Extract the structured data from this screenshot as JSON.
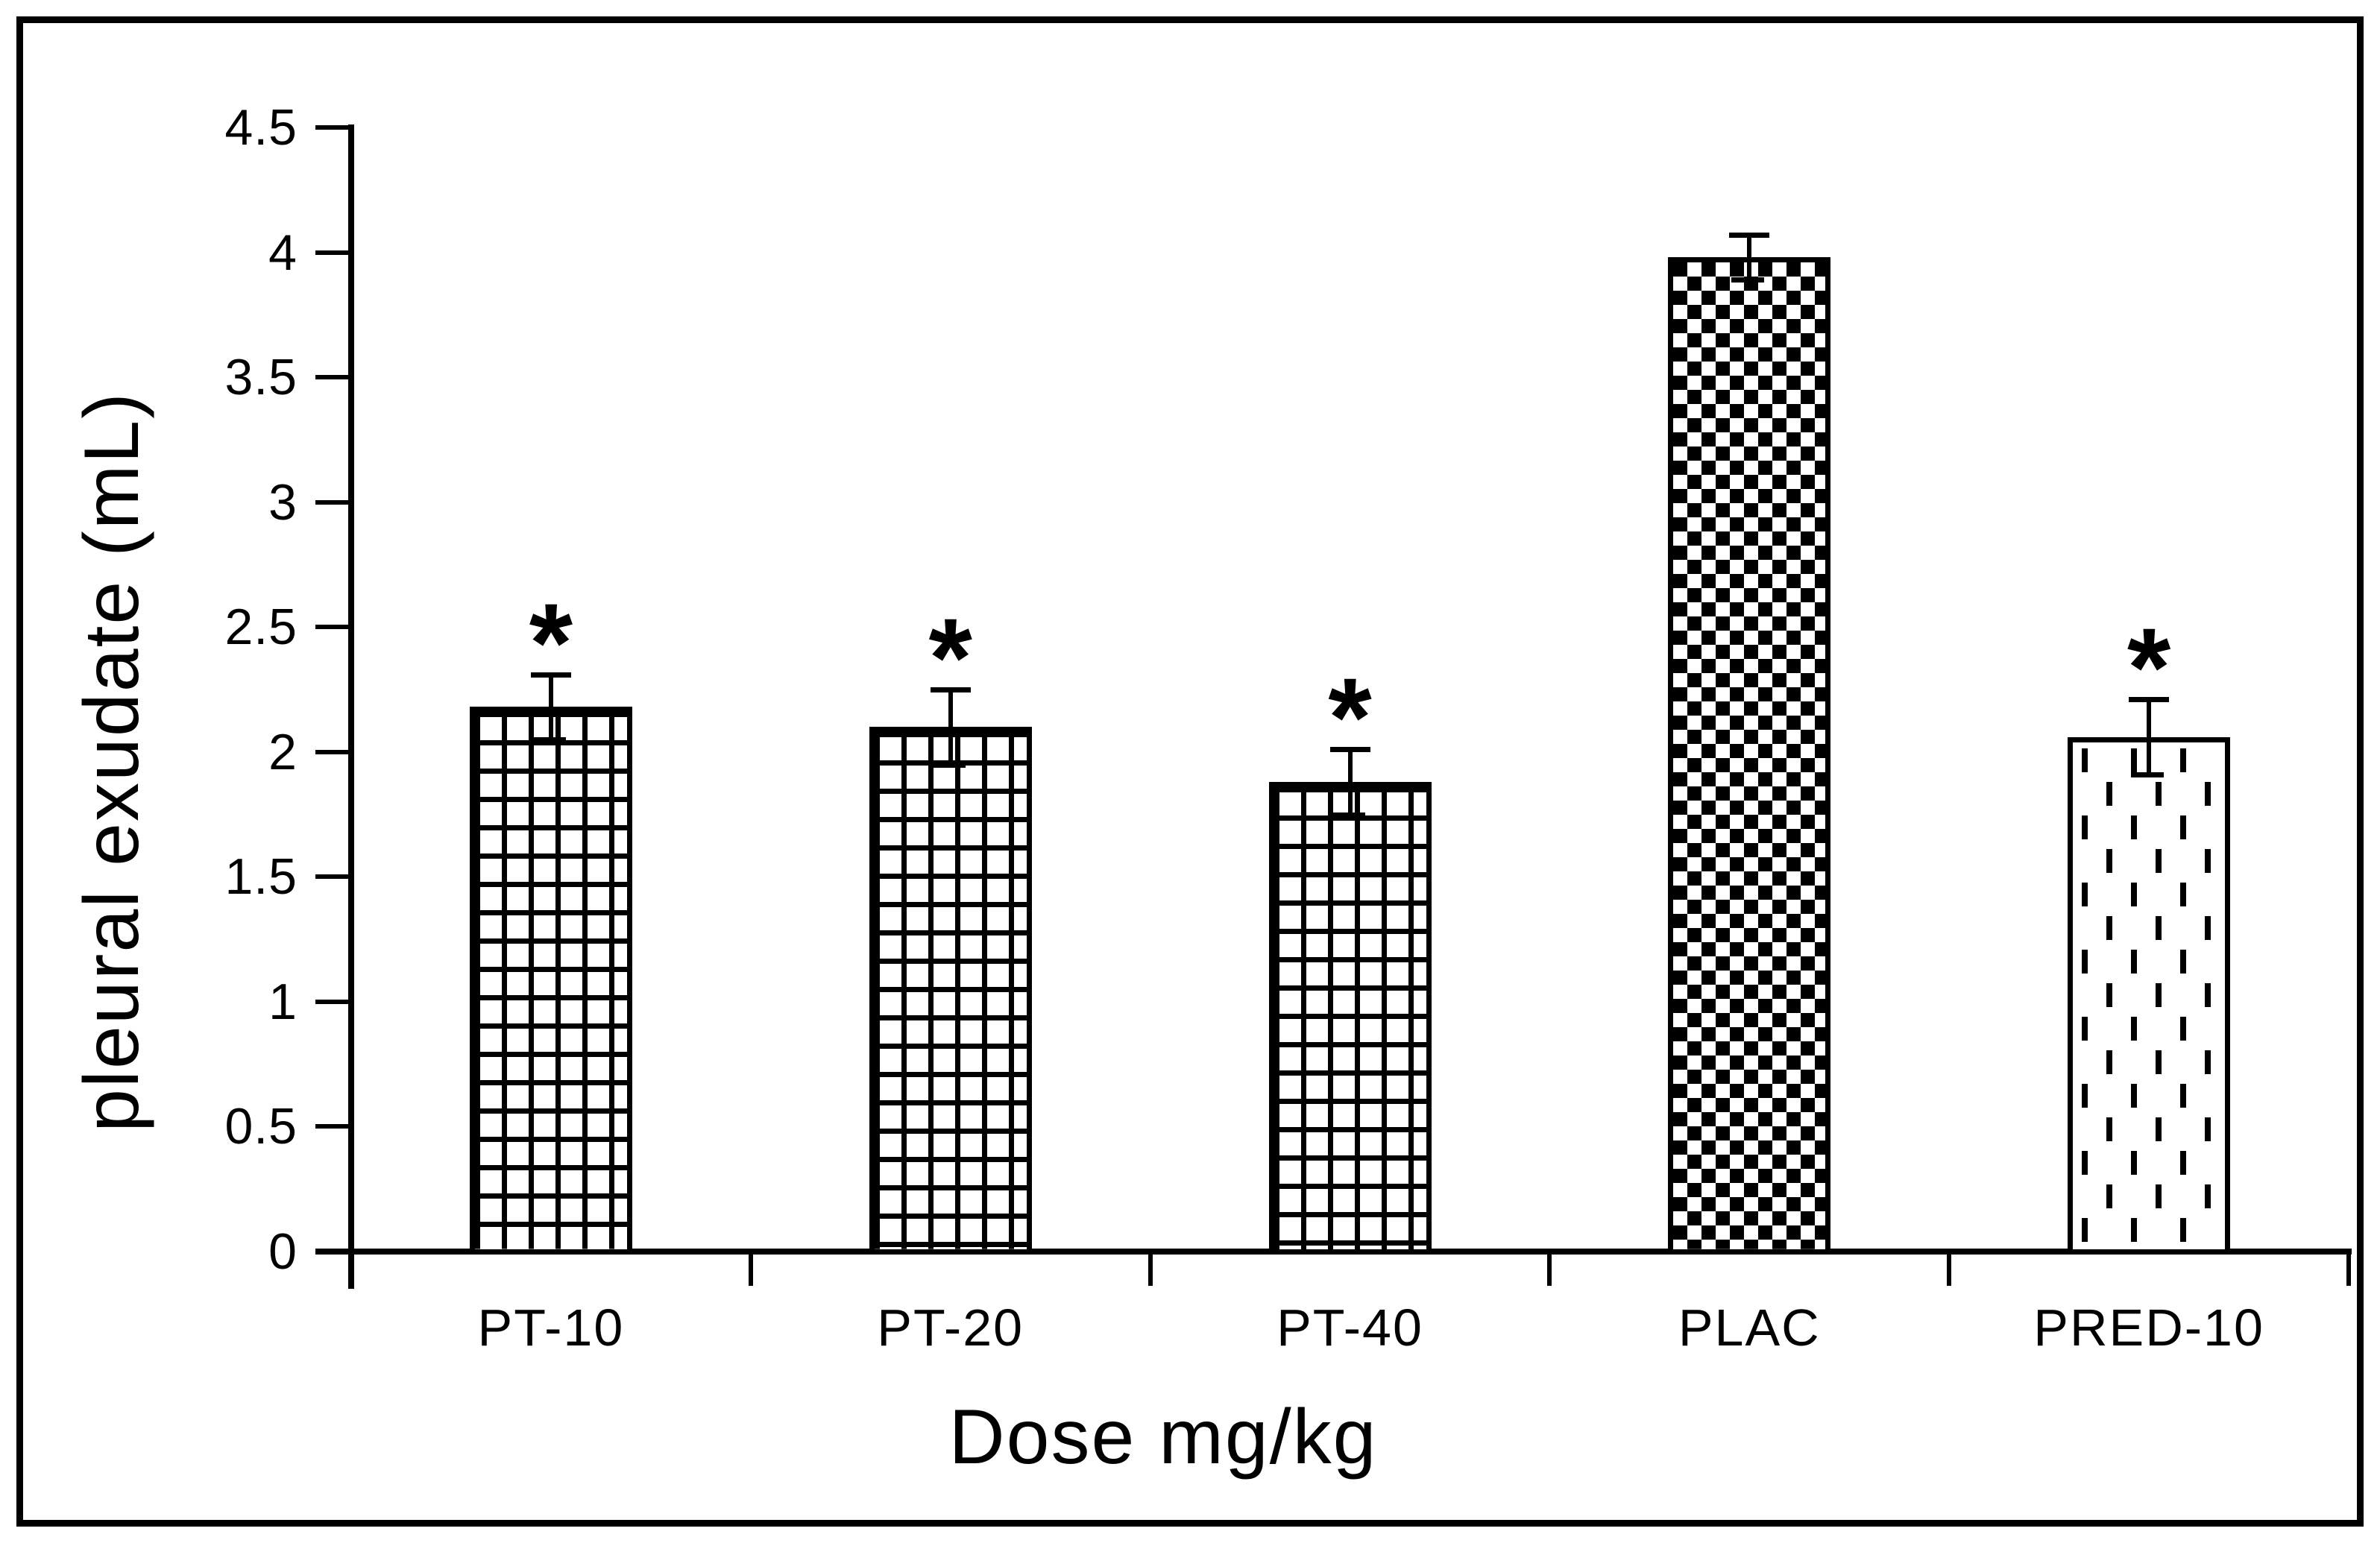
{
  "figure": {
    "background": "#ffffff",
    "frame_color": "#000000",
    "ink_color": "#000000"
  },
  "chart_data": {
    "type": "bar",
    "title": "",
    "xlabel": "Dose mg/kg",
    "ylabel": "pleural exudate (mL)",
    "categories": [
      "PT-10",
      "PT-20",
      "PT-40",
      "PLAC",
      "PRED-10"
    ],
    "values": [
      2.18,
      2.1,
      1.88,
      3.98,
      2.06
    ],
    "error_bars": [
      0.13,
      0.15,
      0.13,
      0.09,
      0.15
    ],
    "significance": [
      true,
      true,
      true,
      false,
      true
    ],
    "significance_marker": "*",
    "patterns": [
      "grid",
      "grid",
      "grid",
      "checker",
      "vdash"
    ],
    "bar_outline_color": "#000000",
    "bar_fill": "#ffffff",
    "ylim": [
      0,
      4.5
    ],
    "ytick_step": 0.5,
    "yticks": [
      "0",
      "0.5",
      "1",
      "1.5",
      "2",
      "2.5",
      "3",
      "3.5",
      "4",
      "4.5"
    ],
    "grid": false,
    "legend": null
  }
}
